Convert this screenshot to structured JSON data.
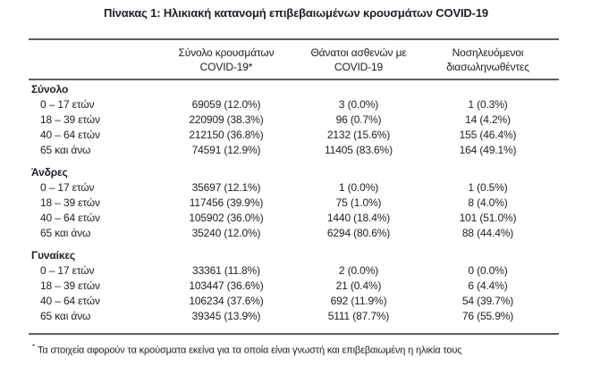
{
  "title": "Πίνακας 1: Ηλικιακή κατανομή επιβεβαιωμένων κρουσμάτων COVID-19",
  "colors": {
    "text": "#202028",
    "rule": "#5f5f62",
    "background": "#ffffff"
  },
  "table": {
    "columns": [
      {
        "line1": "",
        "line2": ""
      },
      {
        "line1": "Σύνολο κρουσμάτων",
        "line2": "COVID-19*"
      },
      {
        "line1": "Θάνατοι ασθενών με",
        "line2": "COVID-19"
      },
      {
        "line1": "Νοσηλευόμενοι",
        "line2": "διασωληνωθέντες"
      }
    ],
    "sections": [
      {
        "name": "Σύνολο",
        "rows": [
          {
            "age": "0 – 17 ετών",
            "cases": "69059 (12.0%)",
            "deaths": "3 (0.0%)",
            "intubated": "1 (0.3%)"
          },
          {
            "age": "18 – 39 ετών",
            "cases": "220909 (38.3%)",
            "deaths": "96 (0.7%)",
            "intubated": "14 (4.2%)"
          },
          {
            "age": "40 – 64 ετών",
            "cases": "212150 (36.8%)",
            "deaths": "2132 (15.6%)",
            "intubated": "155 (46.4%)"
          },
          {
            "age": "65 και άνω",
            "cases": "74591 (12.9%)",
            "deaths": "11405 (83.6%)",
            "intubated": "164 (49.1%)"
          }
        ]
      },
      {
        "name": "Άνδρες",
        "rows": [
          {
            "age": "0 – 17 ετών",
            "cases": "35697 (12.1%)",
            "deaths": "1 (0.0%)",
            "intubated": "1 (0.5%)"
          },
          {
            "age": "18 – 39 ετών",
            "cases": "117456 (39.9%)",
            "deaths": "75 (1.0%)",
            "intubated": "8 (4.0%)"
          },
          {
            "age": "40 – 64 ετών",
            "cases": "105902 (36.0%)",
            "deaths": "1440 (18.4%)",
            "intubated": "101 (51.0%)"
          },
          {
            "age": "65 και άνω",
            "cases": "35240 (12.0%)",
            "deaths": "6294 (80.6%)",
            "intubated": "88 (44.4%)"
          }
        ]
      },
      {
        "name": "Γυναίκες",
        "rows": [
          {
            "age": "0 – 17 ετών",
            "cases": "33361 (11.8%)",
            "deaths": "2 (0.0%)",
            "intubated": "0 (0.0%)"
          },
          {
            "age": "18 – 39 ετών",
            "cases": "103447 (36.6%)",
            "deaths": "21 (0.4%)",
            "intubated": "6 (4.4%)"
          },
          {
            "age": "40 – 64 ετών",
            "cases": "106234 (37.6%)",
            "deaths": "692 (11.9%)",
            "intubated": "54 (39.7%)"
          },
          {
            "age": "65 και άνω",
            "cases": "39345 (13.9%)",
            "deaths": "5111 (87.7%)",
            "intubated": "76 (55.9%)"
          }
        ]
      }
    ],
    "footnote_marker": "*",
    "footnote": "Τα στοιχεία αφορούν τα κρούσματα εκείνα για τα οποία είναι γνωστή και επιβεβαιωμένη η ηλικία τους"
  }
}
